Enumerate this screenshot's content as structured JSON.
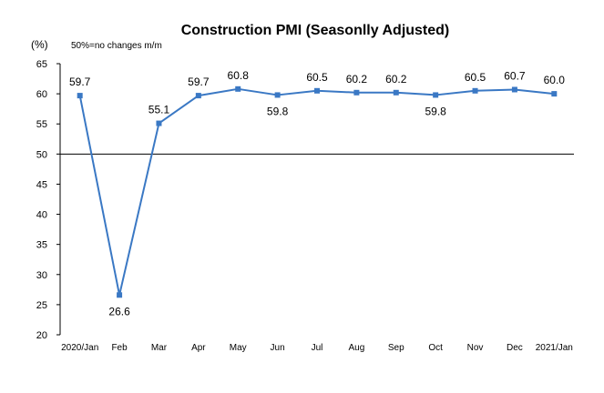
{
  "chart_data": {
    "type": "line",
    "title": "Construction PMI (Seasonlly Adjusted)",
    "unit_label": "(%)",
    "note": "50%=no changes  m/m",
    "categories": [
      "2020/Jan",
      "Feb",
      "Mar",
      "Apr",
      "May",
      "Jun",
      "Jul",
      "Aug",
      "Sep",
      "Oct",
      "Nov",
      "Dec",
      "2021/Jan"
    ],
    "values": [
      59.7,
      26.6,
      55.1,
      59.7,
      60.8,
      59.8,
      60.5,
      60.2,
      60.2,
      59.8,
      60.5,
      60.7,
      60.0
    ],
    "data_labels": [
      "59.7",
      "26.6",
      "55.1",
      "59.7",
      "60.8",
      "59.8",
      "60.5",
      "60.2",
      "60.2",
      "59.8",
      "60.5",
      "60.7",
      "60.0"
    ],
    "yticks": [
      20,
      25,
      30,
      35,
      40,
      45,
      50,
      55,
      60,
      65
    ],
    "ylim": [
      20,
      65
    ],
    "reference_line": 50,
    "grid": false,
    "line_color": "#3a78c4",
    "axis_color": "#000000"
  }
}
